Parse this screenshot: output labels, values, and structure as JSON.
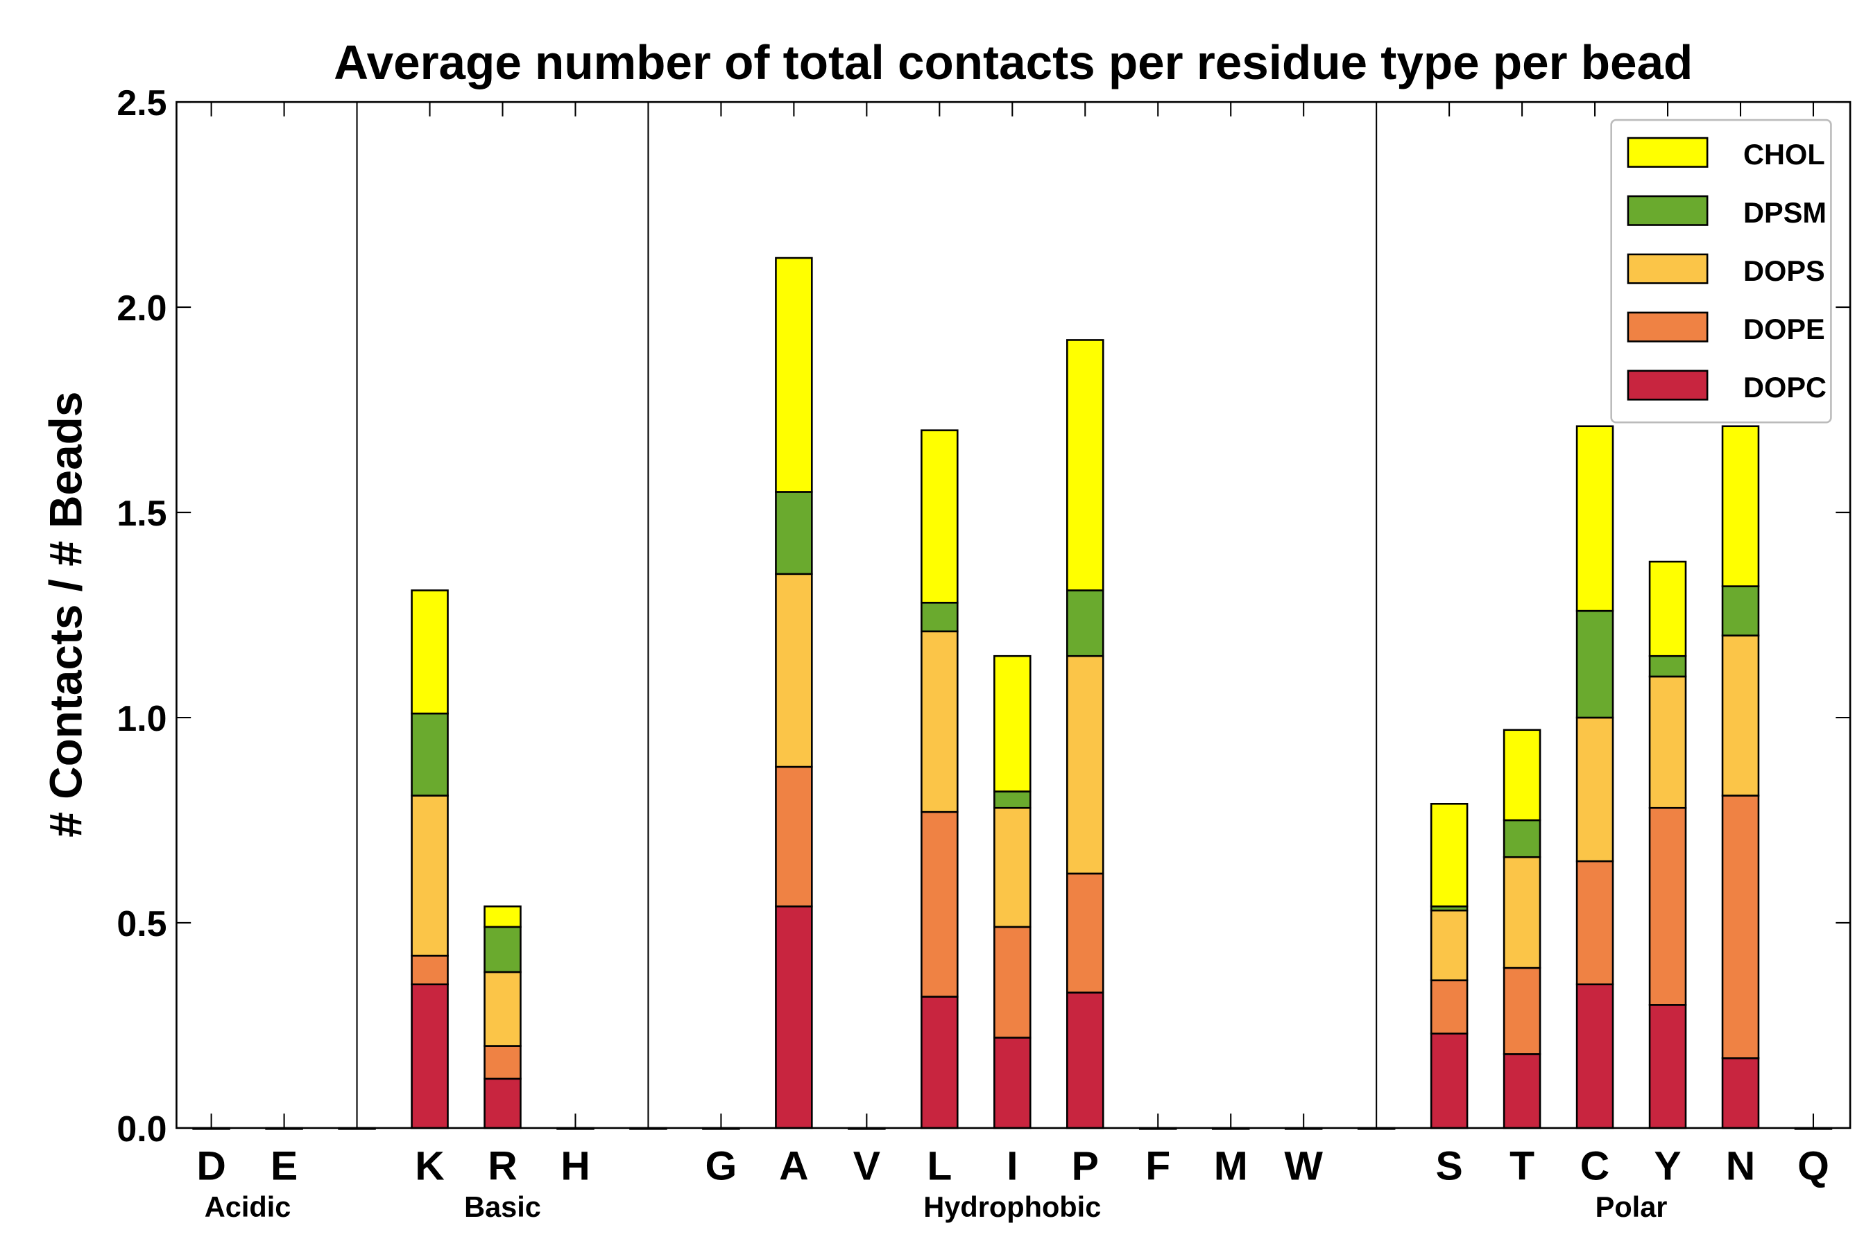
{
  "chart_data": {
    "type": "bar",
    "stacked": true,
    "title": "Average number of total contacts per residue type per bead",
    "xlabel": "",
    "ylabel": "# Contacts / # Beads",
    "ylim": [
      0,
      2.5
    ],
    "yticks": [
      "0.0",
      "0.5",
      "1.0",
      "1.5",
      "2.0",
      "2.5"
    ],
    "grid": false,
    "legend_position": "top-right",
    "slots": [
      "D",
      "E",
      "",
      "K",
      "R",
      "H",
      "",
      "G",
      "A",
      "V",
      "L",
      "I",
      "P",
      "F",
      "M",
      "W",
      "",
      "S",
      "T",
      "C",
      "Y",
      "N",
      "Q"
    ],
    "groups": [
      {
        "label": "Acidic",
        "members": [
          "D",
          "E"
        ]
      },
      {
        "label": "Basic",
        "members": [
          "K",
          "R",
          "H"
        ]
      },
      {
        "label": "Hydrophobic",
        "members": [
          "G",
          "A",
          "V",
          "L",
          "I",
          "P",
          "F",
          "M",
          "W"
        ]
      },
      {
        "label": "Polar",
        "members": [
          "S",
          "T",
          "C",
          "Y",
          "N",
          "Q"
        ]
      }
    ],
    "series": [
      {
        "name": "DOPC",
        "color": "#c8253f",
        "values": [
          0,
          0,
          0,
          0.35,
          0.12,
          0,
          0,
          0,
          0.54,
          0,
          0.32,
          0.22,
          0.33,
          0,
          0,
          0,
          0,
          0.23,
          0.18,
          0.35,
          0.3,
          0.17,
          0
        ]
      },
      {
        "name": "DOPE",
        "color": "#ef8244",
        "values": [
          0,
          0,
          0,
          0.07,
          0.08,
          0,
          0,
          0,
          0.34,
          0,
          0.45,
          0.27,
          0.29,
          0,
          0,
          0,
          0,
          0.13,
          0.21,
          0.3,
          0.48,
          0.64,
          0
        ]
      },
      {
        "name": "DOPS",
        "color": "#fbc548",
        "values": [
          0,
          0,
          0,
          0.39,
          0.18,
          0,
          0,
          0,
          0.47,
          0,
          0.44,
          0.29,
          0.53,
          0,
          0,
          0,
          0,
          0.17,
          0.27,
          0.35,
          0.32,
          0.39,
          0
        ]
      },
      {
        "name": "DPSM",
        "color": "#6aaa2e",
        "values": [
          0,
          0,
          0,
          0.2,
          0.11,
          0,
          0,
          0,
          0.2,
          0,
          0.07,
          0.04,
          0.16,
          0,
          0,
          0,
          0,
          0.01,
          0.09,
          0.26,
          0.05,
          0.12,
          0
        ]
      },
      {
        "name": "CHOL",
        "color": "#ffff00",
        "values": [
          0,
          0,
          0,
          0.3,
          0.05,
          0,
          0,
          0,
          0.57,
          0,
          0.42,
          0.33,
          0.61,
          0,
          0,
          0,
          0,
          0.25,
          0.22,
          0.45,
          0.23,
          0.39,
          0
        ]
      }
    ]
  }
}
